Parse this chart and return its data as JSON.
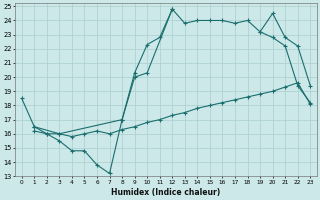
{
  "xlabel": "Humidex (Indice chaleur)",
  "bg_color": "#cce8e8",
  "grid_color": "#aacece",
  "line_color": "#1a6e6e",
  "xlim": [
    -0.5,
    23.5
  ],
  "ylim": [
    13,
    25.2
  ],
  "xticks": [
    0,
    1,
    2,
    3,
    4,
    5,
    6,
    7,
    8,
    9,
    10,
    11,
    12,
    13,
    14,
    15,
    16,
    17,
    18,
    19,
    20,
    21,
    22,
    23
  ],
  "yticks": [
    13,
    14,
    15,
    16,
    17,
    18,
    19,
    20,
    21,
    22,
    23,
    24,
    25
  ],
  "line1_x": [
    0,
    1,
    2,
    3,
    4,
    5,
    6,
    7,
    8,
    9,
    10,
    11,
    12
  ],
  "line1_y": [
    18.5,
    16.5,
    16.0,
    15.5,
    14.8,
    14.8,
    13.8,
    13.2,
    17.0,
    20.3,
    22.3,
    22.8,
    24.8
  ],
  "line2_x": [
    1,
    2,
    3,
    4,
    5,
    6,
    7,
    8,
    9,
    10,
    11,
    12,
    13,
    14,
    15,
    16,
    17,
    18,
    19,
    20,
    21,
    22,
    23
  ],
  "line2_y": [
    16.2,
    16.0,
    16.0,
    15.8,
    16.0,
    16.2,
    16.0,
    16.3,
    16.5,
    16.8,
    17.0,
    17.3,
    17.5,
    17.8,
    18.0,
    18.2,
    18.4,
    18.6,
    18.8,
    19.0,
    19.3,
    19.6,
    18.1
  ],
  "line3_x": [
    1,
    3,
    8,
    9,
    10,
    12,
    13,
    14,
    15,
    16,
    17,
    18,
    19,
    20,
    21,
    22,
    23
  ],
  "line3_y": [
    16.5,
    16.0,
    17.0,
    20.0,
    20.3,
    24.8,
    23.8,
    24.0,
    24.0,
    24.0,
    23.8,
    24.0,
    23.2,
    22.8,
    22.2,
    19.4,
    18.2
  ],
  "line4_x": [
    19,
    20,
    21,
    22,
    23
  ],
  "line4_y": [
    23.2,
    24.5,
    22.8,
    22.2,
    19.4
  ]
}
